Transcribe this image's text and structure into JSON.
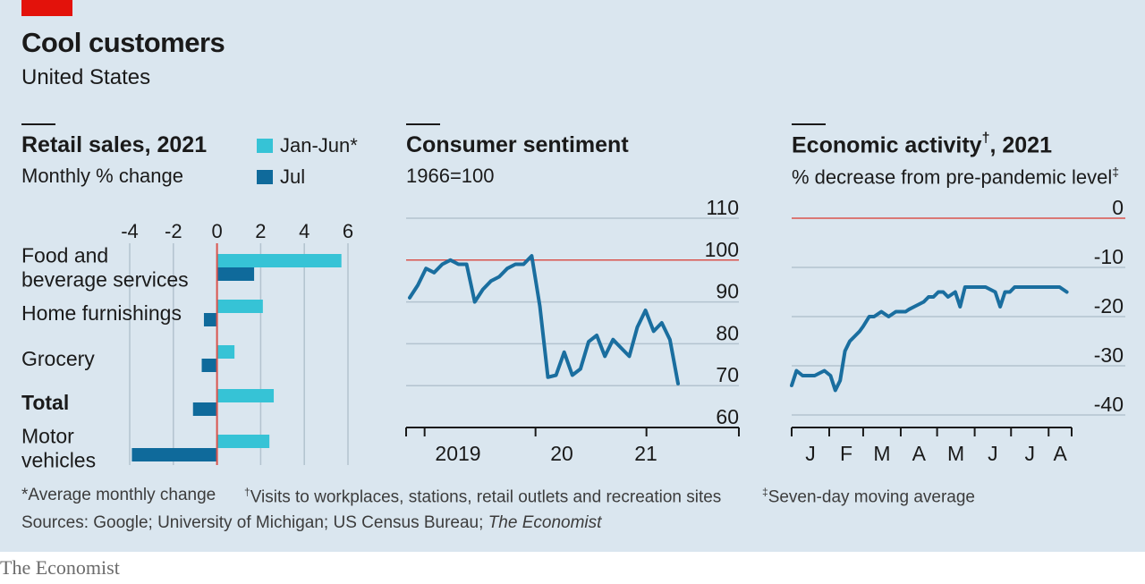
{
  "header": {
    "title": "Cool customers",
    "subtitle": "United States"
  },
  "colors": {
    "background": "#dae6ef",
    "jan_jun": "#36c3d6",
    "jul": "#0f6a9b",
    "line": "#1a6e9f",
    "reference": "#d9544d",
    "grid": "#b3c3cf",
    "accent": "#e3120b"
  },
  "panels": {
    "retail": {
      "title": "Retail sales, 2021",
      "subtitle": "Monthly % change",
      "legend": [
        "Jan-Jun*",
        "Jul"
      ]
    },
    "sentiment": {
      "title": "Consumer sentiment",
      "subtitle": "1966=100"
    },
    "activity": {
      "title": "Economic activity",
      "title_mark": "†",
      "title_suffix": ", 2021",
      "subtitle": "% decrease from pre-pandemic level",
      "subtitle_mark": "‡"
    }
  },
  "chart_data": [
    {
      "type": "bar",
      "orientation": "horizontal",
      "categories": [
        "Food and beverage services",
        "Home furnishings",
        "Grocery",
        "Total",
        "Motor vehicles"
      ],
      "category_lines": [
        [
          "Food and",
          "beverage services"
        ],
        [
          "Home furnishings"
        ],
        [
          "Grocery"
        ],
        [
          "Total"
        ],
        [
          "Motor",
          "vehicles"
        ]
      ],
      "bold_category": "Total",
      "series": [
        {
          "name": "Jan-Jun*",
          "values": [
            5.7,
            2.1,
            0.8,
            2.6,
            2.4
          ]
        },
        {
          "name": "Jul",
          "values": [
            1.7,
            -0.6,
            -0.7,
            -1.1,
            -3.9
          ]
        }
      ],
      "xlim": [
        -4,
        6
      ],
      "xticks": [
        -4,
        -2,
        0,
        2,
        4,
        6
      ],
      "xtick_labels": [
        "-4",
        "-2",
        "0",
        "2",
        "4",
        "6"
      ],
      "reference_line": 0,
      "grid": true
    },
    {
      "type": "line",
      "x": [
        "2018-11",
        "2018-12",
        "2019-01",
        "2019-02",
        "2019-03",
        "2019-04",
        "2019-05",
        "2019-06",
        "2019-07",
        "2019-08",
        "2019-09",
        "2019-10",
        "2019-11",
        "2019-12",
        "2020-01",
        "2020-02",
        "2020-03",
        "2020-04",
        "2020-05",
        "2020-06",
        "2020-07",
        "2020-08",
        "2020-09",
        "2020-10",
        "2020-11",
        "2020-12",
        "2021-01",
        "2021-02",
        "2021-03",
        "2021-04",
        "2021-05",
        "2021-06",
        "2021-07",
        "2021-08"
      ],
      "y": [
        91,
        94,
        98,
        97,
        99,
        100,
        99,
        99,
        90,
        93,
        95,
        96,
        98,
        99,
        99,
        101,
        89,
        72,
        72.5,
        78,
        72.5,
        74,
        80.5,
        82,
        77,
        81,
        79,
        77,
        84,
        88,
        83,
        85,
        81,
        70.5
      ],
      "xtick_labels": [
        "2019",
        "20",
        "21"
      ],
      "xtick_positions": [
        "2019-01",
        "2020-01",
        "2021-01"
      ],
      "year_boundaries": [
        "2018-11",
        "2019-01",
        "2020-01",
        "2021-01",
        "2021-08",
        "2021-11"
      ],
      "ylim": [
        60,
        110
      ],
      "yticks": [
        60,
        70,
        80,
        90,
        100,
        110
      ],
      "ytick_labels": [
        "60",
        "70",
        "80",
        "90",
        "100",
        "110"
      ],
      "reference_line": 100,
      "grid": true
    },
    {
      "type": "line",
      "x": [
        "2021-01-01",
        "2021-01-05",
        "2021-01-10",
        "2021-01-20",
        "2021-01-28",
        "2021-02-02",
        "2021-02-06",
        "2021-02-10",
        "2021-02-14",
        "2021-02-18",
        "2021-02-22",
        "2021-02-26",
        "2021-03-01",
        "2021-03-06",
        "2021-03-10",
        "2021-03-16",
        "2021-03-22",
        "2021-03-28",
        "2021-04-01",
        "2021-04-05",
        "2021-04-08",
        "2021-04-12",
        "2021-04-20",
        "2021-04-24",
        "2021-04-28",
        "2021-05-02",
        "2021-05-06",
        "2021-05-10",
        "2021-05-16",
        "2021-05-20",
        "2021-05-24",
        "2021-05-28",
        "2021-06-01",
        "2021-06-10",
        "2021-06-18",
        "2021-06-22",
        "2021-06-26",
        "2021-06-30",
        "2021-07-04",
        "2021-07-10",
        "2021-07-18",
        "2021-07-25",
        "2021-08-01",
        "2021-08-10",
        "2021-08-16"
      ],
      "y": [
        -34,
        -31,
        -32,
        -32,
        -31,
        -32,
        -35,
        -33,
        -27,
        -25,
        -24,
        -23,
        -22,
        -20,
        -20,
        -19,
        -20,
        -19,
        -19,
        -19,
        -18.5,
        -18,
        -17,
        -16,
        -16,
        -15,
        -15,
        -16,
        -15,
        -18,
        -14,
        -14,
        -14,
        -14,
        -15,
        -18,
        -15,
        -15,
        -14,
        -14,
        -14,
        -14,
        -14,
        -14,
        -15
      ],
      "xtick_labels": [
        "J",
        "F",
        "M",
        "A",
        "M",
        "J",
        "J",
        "A"
      ],
      "ylim": [
        -40,
        0
      ],
      "yticks": [
        -40,
        -30,
        -20,
        -10,
        0
      ],
      "ytick_labels": [
        "-40",
        "-30",
        "-20",
        "-10",
        "0"
      ],
      "reference_line": 0,
      "grid": true
    }
  ],
  "footnotes": {
    "note1": "*Average monthly change",
    "note2_mark": "†",
    "note2": "Visits to workplaces, stations, retail outlets and recreation sites",
    "note3_mark": "‡",
    "note3": "Seven-day moving average",
    "sources_prefix": "Sources: Google; University of Michigan; US Census Bureau; ",
    "sources_italic": "The Economist"
  },
  "logo": "The Economist"
}
